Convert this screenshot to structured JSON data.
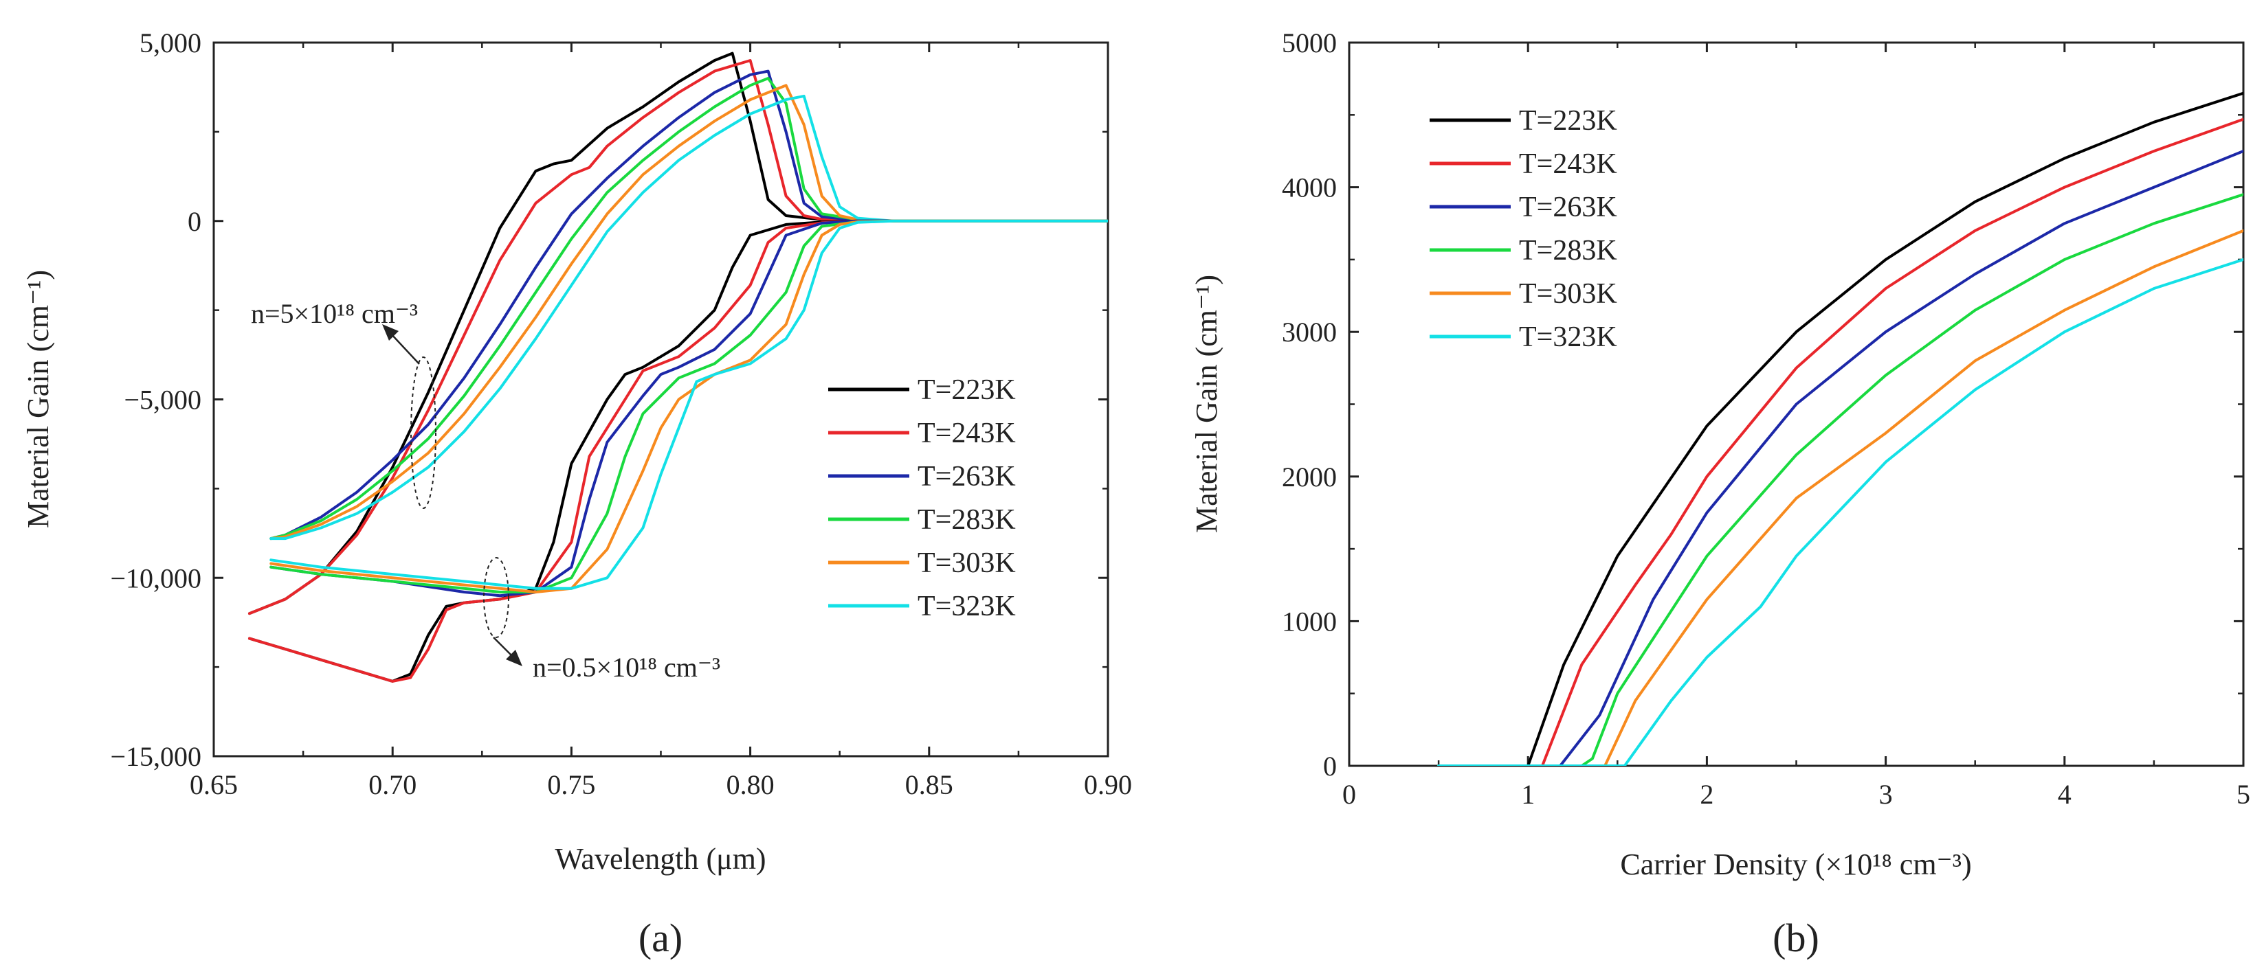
{
  "colors": {
    "T=223K": "#000000",
    "T=243K": "#e8262b",
    "T=263K": "#1c28a8",
    "T=283K": "#19d93f",
    "T=303K": "#f78a1e",
    "T=323K": "#13e0e6"
  },
  "chart_data": [
    {
      "panel": "(a)",
      "type": "line",
      "xlabel": "Wavelength (μm)",
      "ylabel": "Material Gain (cm⁻¹)",
      "xlim": [
        0.65,
        0.9
      ],
      "ylim": [
        -15000,
        5000
      ],
      "xticks": [
        0.65,
        0.7,
        0.75,
        0.8,
        0.85,
        0.9
      ],
      "xtick_labels": [
        "0.65",
        "0.70",
        "0.75",
        "0.80",
        "0.85",
        "0.90"
      ],
      "yticks": [
        -15000,
        -10000,
        -5000,
        0,
        5000
      ],
      "ytick_labels": [
        "−15,000",
        "−10,000",
        "−5,000",
        "0",
        "5,000"
      ],
      "legend": [
        "T=223K",
        "T=243K",
        "T=263K",
        "T=283K",
        "T=303K",
        "T=323K"
      ],
      "legend_position": "center-right",
      "annotations": {
        "high_density": "n=5×10¹⁸ cm⁻³",
        "low_density": "n=0.5×10¹⁸ cm⁻³"
      },
      "series_high_density": [
        {
          "name": "T=223K",
          "x": [
            0.66,
            0.67,
            0.68,
            0.69,
            0.7,
            0.71,
            0.72,
            0.73,
            0.74,
            0.745,
            0.75,
            0.76,
            0.77,
            0.78,
            0.79,
            0.795,
            0.8,
            0.805,
            0.81,
            0.82,
            0.83,
            0.84,
            0.9
          ],
          "y": [
            -11000,
            -10600,
            -9900,
            -8700,
            -6900,
            -4800,
            -2500,
            -200,
            1400,
            1600,
            1700,
            2600,
            3200,
            3900,
            4500,
            4700,
            2800,
            600,
            150,
            40,
            0,
            0,
            0
          ]
        },
        {
          "name": "T=243K",
          "x": [
            0.66,
            0.67,
            0.68,
            0.69,
            0.7,
            0.71,
            0.72,
            0.73,
            0.74,
            0.75,
            0.755,
            0.76,
            0.77,
            0.78,
            0.79,
            0.8,
            0.805,
            0.81,
            0.815,
            0.82,
            0.83,
            0.84,
            0.9
          ],
          "y": [
            -11000,
            -10600,
            -9900,
            -8800,
            -7200,
            -5300,
            -3200,
            -1100,
            500,
            1300,
            1500,
            2100,
            2900,
            3600,
            4200,
            4500,
            2700,
            700,
            150,
            50,
            0,
            0,
            0
          ]
        },
        {
          "name": "T=263K",
          "x": [
            0.666,
            0.67,
            0.68,
            0.69,
            0.7,
            0.71,
            0.72,
            0.73,
            0.74,
            0.75,
            0.76,
            0.77,
            0.78,
            0.79,
            0.8,
            0.805,
            0.81,
            0.815,
            0.82,
            0.83,
            0.84,
            0.9
          ],
          "y": [
            -8900,
            -8800,
            -8300,
            -7600,
            -6700,
            -5700,
            -4400,
            -2900,
            -1300,
            200,
            1200,
            2100,
            2900,
            3600,
            4100,
            4200,
            2500,
            500,
            120,
            20,
            0,
            0
          ]
        },
        {
          "name": "T=283K",
          "x": [
            0.666,
            0.67,
            0.68,
            0.69,
            0.7,
            0.71,
            0.72,
            0.73,
            0.74,
            0.75,
            0.76,
            0.77,
            0.78,
            0.79,
            0.8,
            0.805,
            0.81,
            0.815,
            0.82,
            0.83,
            0.84,
            0.9
          ],
          "y": [
            -8900,
            -8800,
            -8400,
            -7800,
            -7000,
            -6100,
            -4900,
            -3500,
            -2000,
            -500,
            800,
            1700,
            2500,
            3200,
            3800,
            4000,
            3300,
            900,
            200,
            40,
            0,
            0
          ]
        },
        {
          "name": "T=303K",
          "x": [
            0.666,
            0.67,
            0.68,
            0.69,
            0.7,
            0.71,
            0.72,
            0.73,
            0.74,
            0.75,
            0.76,
            0.77,
            0.78,
            0.79,
            0.8,
            0.81,
            0.815,
            0.82,
            0.825,
            0.83,
            0.84,
            0.9
          ],
          "y": [
            -8900,
            -8850,
            -8500,
            -8000,
            -7300,
            -6500,
            -5400,
            -4100,
            -2700,
            -1200,
            200,
            1300,
            2100,
            2800,
            3400,
            3800,
            2700,
            700,
            150,
            40,
            0,
            0
          ]
        },
        {
          "name": "T=323K",
          "x": [
            0.666,
            0.67,
            0.68,
            0.69,
            0.7,
            0.71,
            0.72,
            0.73,
            0.74,
            0.75,
            0.76,
            0.77,
            0.78,
            0.79,
            0.8,
            0.81,
            0.815,
            0.82,
            0.825,
            0.83,
            0.84,
            0.9
          ],
          "y": [
            -8900,
            -8900,
            -8600,
            -8200,
            -7600,
            -6900,
            -5900,
            -4700,
            -3300,
            -1800,
            -300,
            800,
            1700,
            2400,
            3000,
            3400,
            3500,
            1800,
            400,
            80,
            0,
            0
          ]
        }
      ],
      "series_low_density": [
        {
          "name": "T=223K",
          "x": [
            0.66,
            0.67,
            0.68,
            0.69,
            0.7,
            0.705,
            0.71,
            0.715,
            0.72,
            0.73,
            0.74,
            0.745,
            0.75,
            0.76,
            0.765,
            0.77,
            0.78,
            0.79,
            0.795,
            0.8,
            0.81,
            0.82,
            0.83,
            0.84,
            0.9
          ],
          "y": [
            -11700,
            -12000,
            -12300,
            -12600,
            -12900,
            -12700,
            -11600,
            -10800,
            -10700,
            -10600,
            -10300,
            -9000,
            -6800,
            -5000,
            -4300,
            -4100,
            -3500,
            -2500,
            -1300,
            -400,
            -100,
            -30,
            0,
            0,
            0
          ]
        },
        {
          "name": "T=243K",
          "x": [
            0.66,
            0.67,
            0.68,
            0.69,
            0.7,
            0.705,
            0.71,
            0.715,
            0.72,
            0.73,
            0.74,
            0.75,
            0.755,
            0.765,
            0.77,
            0.78,
            0.79,
            0.8,
            0.805,
            0.81,
            0.82,
            0.83,
            0.84,
            0.9
          ],
          "y": [
            -11700,
            -12000,
            -12300,
            -12600,
            -12900,
            -12800,
            -12000,
            -10900,
            -10700,
            -10600,
            -10400,
            -9000,
            -6600,
            -5000,
            -4200,
            -3800,
            -3000,
            -1800,
            -600,
            -200,
            -50,
            0,
            0,
            0
          ]
        },
        {
          "name": "T=263K",
          "x": [
            0.666,
            0.68,
            0.7,
            0.72,
            0.73,
            0.74,
            0.75,
            0.755,
            0.76,
            0.77,
            0.775,
            0.78,
            0.79,
            0.8,
            0.805,
            0.81,
            0.82,
            0.83,
            0.84,
            0.9
          ],
          "y": [
            -9700,
            -9900,
            -10100,
            -10400,
            -10500,
            -10400,
            -9700,
            -7800,
            -6200,
            -4900,
            -4300,
            -4100,
            -3600,
            -2600,
            -1500,
            -400,
            -60,
            0,
            0,
            0
          ]
        },
        {
          "name": "T=283K",
          "x": [
            0.666,
            0.68,
            0.7,
            0.72,
            0.73,
            0.74,
            0.75,
            0.76,
            0.765,
            0.77,
            0.78,
            0.785,
            0.79,
            0.8,
            0.81,
            0.815,
            0.82,
            0.83,
            0.84,
            0.9
          ],
          "y": [
            -9700,
            -9900,
            -10100,
            -10300,
            -10400,
            -10400,
            -10000,
            -8200,
            -6600,
            -5400,
            -4400,
            -4200,
            -4000,
            -3200,
            -2000,
            -700,
            -150,
            -20,
            0,
            0
          ]
        },
        {
          "name": "T=303K",
          "x": [
            0.666,
            0.68,
            0.7,
            0.72,
            0.73,
            0.74,
            0.75,
            0.76,
            0.77,
            0.775,
            0.78,
            0.79,
            0.8,
            0.81,
            0.815,
            0.82,
            0.825,
            0.83,
            0.84,
            0.9
          ],
          "y": [
            -9600,
            -9800,
            -10000,
            -10200,
            -10300,
            -10400,
            -10300,
            -9200,
            -7000,
            -5800,
            -5000,
            -4300,
            -3900,
            -2900,
            -1500,
            -400,
            -100,
            -20,
            0,
            0
          ]
        },
        {
          "name": "T=323K",
          "x": [
            0.666,
            0.68,
            0.7,
            0.72,
            0.73,
            0.74,
            0.75,
            0.76,
            0.77,
            0.775,
            0.78,
            0.785,
            0.79,
            0.8,
            0.81,
            0.815,
            0.82,
            0.825,
            0.83,
            0.84,
            0.9
          ],
          "y": [
            -9500,
            -9700,
            -9900,
            -10100,
            -10200,
            -10300,
            -10300,
            -10000,
            -8600,
            -7100,
            -5800,
            -4500,
            -4300,
            -4000,
            -3300,
            -2500,
            -900,
            -200,
            -40,
            0,
            0
          ]
        }
      ]
    },
    {
      "panel": "(b)",
      "type": "line",
      "xlabel": "Carrier Density (×10¹⁸ cm⁻³)",
      "ylabel": "Material Gain (cm⁻¹)",
      "xlim": [
        0,
        5
      ],
      "ylim": [
        0,
        5000
      ],
      "xticks": [
        0,
        1,
        2,
        3,
        4,
        5
      ],
      "xtick_labels": [
        "0",
        "1",
        "2",
        "3",
        "4",
        "5"
      ],
      "yticks": [
        0,
        1000,
        2000,
        3000,
        4000,
        5000
      ],
      "ytick_labels": [
        "0",
        "1000",
        "2000",
        "3000",
        "4000",
        "5000"
      ],
      "legend": [
        "T=223K",
        "T=243K",
        "T=263K",
        "T=283K",
        "T=303K",
        "T=323K"
      ],
      "legend_position": "top-left",
      "series": [
        {
          "name": "T=223K",
          "x": [
            0.5,
            1.0,
            1.2,
            1.5,
            2.0,
            2.5,
            3.0,
            3.5,
            4.0,
            4.5,
            5.0
          ],
          "y": [
            0,
            0,
            700,
            1450,
            2350,
            3000,
            3500,
            3900,
            4200,
            4450,
            4650
          ]
        },
        {
          "name": "T=243K",
          "x": [
            0.5,
            1.08,
            1.3,
            1.6,
            1.8,
            2.0,
            2.5,
            3.0,
            3.5,
            4.0,
            4.5,
            5.0
          ],
          "y": [
            0,
            0,
            700,
            1250,
            1600,
            2000,
            2750,
            3300,
            3700,
            4000,
            4250,
            4470
          ]
        },
        {
          "name": "T=263K",
          "x": [
            0.5,
            1.18,
            1.4,
            1.7,
            2.0,
            2.5,
            3.0,
            3.5,
            4.0,
            4.5,
            5.0
          ],
          "y": [
            0,
            0,
            350,
            1150,
            1750,
            2500,
            3000,
            3400,
            3750,
            4000,
            4250
          ]
        },
        {
          "name": "T=283K",
          "x": [
            0.5,
            1.3,
            1.36,
            1.5,
            2.0,
            2.5,
            3.0,
            3.5,
            4.0,
            4.5,
            5.0
          ],
          "y": [
            0,
            0,
            50,
            500,
            1450,
            2150,
            2700,
            3150,
            3500,
            3750,
            3950
          ]
        },
        {
          "name": "T=303K",
          "x": [
            0.5,
            1.43,
            1.6,
            2.0,
            2.5,
            3.0,
            3.5,
            4.0,
            4.5,
            5.0
          ],
          "y": [
            0,
            0,
            450,
            1150,
            1850,
            2300,
            2800,
            3150,
            3450,
            3700
          ]
        },
        {
          "name": "T=323K",
          "x": [
            0.5,
            1.54,
            1.8,
            2.0,
            2.3,
            2.5,
            3.0,
            3.5,
            4.0,
            4.5,
            5.0
          ],
          "y": [
            0,
            0,
            450,
            750,
            1100,
            1450,
            2100,
            2600,
            3000,
            3300,
            3500
          ]
        }
      ]
    }
  ]
}
